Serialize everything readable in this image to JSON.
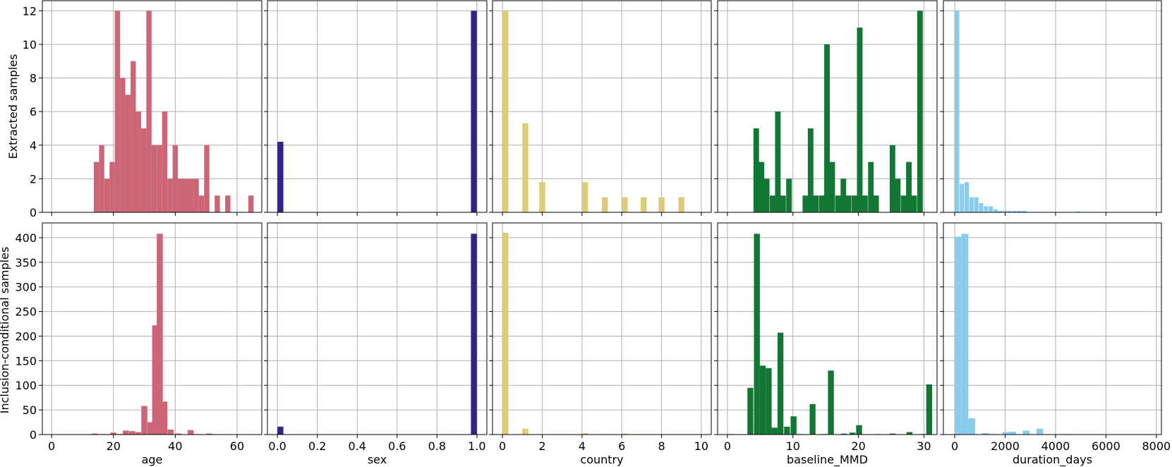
{
  "row_labels": [
    "Extracted samples",
    "Inclusion-conditional samples"
  ],
  "colors": {
    "age": "#cc6677",
    "sex": "#332288",
    "country": "#ddcc77",
    "baseline_MMD": "#117733",
    "duration_days": "#88ccee",
    "grid": "#b0b0b0"
  },
  "chart_data": [
    {
      "type": "bar",
      "row": 0,
      "col": 0,
      "variable": "age",
      "xlabel": "",
      "ylabel": "Extracted samples",
      "xlim": [
        -3,
        68
      ],
      "ylim": [
        0,
        12.6
      ],
      "xticks": [
        0,
        20,
        40,
        60
      ],
      "yticks": [
        0,
        2,
        4,
        6,
        8,
        10,
        12
      ],
      "show_xticklabels": false,
      "show_yticklabels": true,
      "bar_width": 1.7,
      "bars": [
        [
          14.5,
          3
        ],
        [
          16.2,
          4
        ],
        [
          17.9,
          2
        ],
        [
          19.6,
          3
        ],
        [
          21.3,
          12
        ],
        [
          23,
          8
        ],
        [
          24.7,
          7
        ],
        [
          26.4,
          9
        ],
        [
          28.1,
          6
        ],
        [
          29.8,
          5
        ],
        [
          31.5,
          12
        ],
        [
          33.2,
          4
        ],
        [
          34.9,
          4
        ],
        [
          36.6,
          6
        ],
        [
          38.3,
          2
        ],
        [
          40,
          4
        ],
        [
          41.7,
          2
        ],
        [
          43.4,
          2
        ],
        [
          45.1,
          2
        ],
        [
          46.8,
          2
        ],
        [
          48.5,
          1
        ],
        [
          50.2,
          4
        ],
        [
          53.6,
          1
        ],
        [
          57,
          1
        ],
        [
          64.5,
          1
        ]
      ]
    },
    {
      "type": "bar",
      "row": 0,
      "col": 1,
      "variable": "sex",
      "xlabel": "",
      "ylabel": "",
      "xlim": [
        -0.05,
        1.05
      ],
      "ylim": [
        0,
        12.6
      ],
      "xticks": [
        0,
        0.2,
        0.4,
        0.6,
        0.8,
        1.0
      ],
      "yticks": [
        0,
        2,
        4,
        6,
        8,
        10,
        12
      ],
      "show_xticklabels": false,
      "show_yticklabels": false,
      "bar_width": 0.03,
      "bars": [
        [
          0.015,
          4.2
        ],
        [
          0.985,
          12
        ]
      ]
    },
    {
      "type": "bar",
      "row": 0,
      "col": 2,
      "variable": "country",
      "xlabel": "",
      "ylabel": "",
      "xlim": [
        -0.5,
        10.5
      ],
      "ylim": [
        0,
        12.6
      ],
      "xticks": [
        0,
        2,
        4,
        6,
        8,
        10
      ],
      "yticks": [
        0,
        2,
        4,
        6,
        8,
        10,
        12
      ],
      "show_xticklabels": false,
      "show_yticklabels": false,
      "bar_width": 0.3,
      "bars": [
        [
          0.15,
          12
        ],
        [
          1.15,
          5.3
        ],
        [
          2,
          1.8
        ],
        [
          4.15,
          1.8
        ],
        [
          5.15,
          0.9
        ],
        [
          6.15,
          0.9
        ],
        [
          7.1,
          0.9
        ],
        [
          8,
          0.9
        ],
        [
          9,
          0.9
        ]
      ]
    },
    {
      "type": "bar",
      "row": 0,
      "col": 3,
      "variable": "baseline_MMD",
      "xlabel": "",
      "ylabel": "",
      "xlim": [
        -1.5,
        32
      ],
      "ylim": [
        0,
        12.6
      ],
      "xticks": [
        0,
        10,
        20,
        30
      ],
      "yticks": [
        0,
        2,
        4,
        6,
        8,
        10,
        12
      ],
      "show_xticklabels": false,
      "show_yticklabels": false,
      "bar_width": 0.85,
      "bars": [
        [
          4.4,
          5
        ],
        [
          5.2,
          3
        ],
        [
          6,
          2
        ],
        [
          6.9,
          1
        ],
        [
          7.7,
          6
        ],
        [
          8.5,
          1
        ],
        [
          9.4,
          2
        ],
        [
          11.9,
          1
        ],
        [
          12.7,
          5
        ],
        [
          13.5,
          1
        ],
        [
          14.4,
          1
        ],
        [
          15.2,
          10
        ],
        [
          16,
          3
        ],
        [
          16.9,
          1
        ],
        [
          17.7,
          2
        ],
        [
          18.5,
          1
        ],
        [
          19.4,
          1
        ],
        [
          20.2,
          11
        ],
        [
          21,
          1
        ],
        [
          21.9,
          3
        ],
        [
          22.7,
          1
        ],
        [
          25.2,
          4
        ],
        [
          26,
          2
        ],
        [
          26.9,
          1
        ],
        [
          27.7,
          3
        ],
        [
          28.5,
          1
        ],
        [
          29.4,
          12
        ]
      ]
    },
    {
      "type": "bar",
      "row": 0,
      "col": 4,
      "variable": "duration_days",
      "xlabel": "",
      "ylabel": "",
      "xlim": [
        -450,
        8200
      ],
      "ylim": [
        0,
        12.6
      ],
      "xticks": [
        0,
        2000,
        4000,
        6000,
        8000
      ],
      "yticks": [
        0,
        2,
        4,
        6,
        8,
        10,
        12
      ],
      "show_xticklabels": false,
      "show_yticklabels": false,
      "bar_width": 170,
      "bars": [
        [
          95,
          12
        ],
        [
          285,
          1.7
        ],
        [
          475,
          1.8
        ],
        [
          665,
          0.9
        ],
        [
          855,
          0.9
        ],
        [
          1045,
          0.55
        ],
        [
          1240,
          0.36
        ],
        [
          1430,
          0.36
        ],
        [
          1620,
          0.18
        ],
        [
          1810,
          0.09
        ],
        [
          2000,
          0.09
        ],
        [
          2190,
          0.09
        ],
        [
          2380,
          0.09
        ],
        [
          2570,
          0.09
        ],
        [
          2760,
          0.09
        ],
        [
          4900,
          0.05
        ]
      ]
    },
    {
      "type": "bar",
      "row": 1,
      "col": 0,
      "variable": "age",
      "xlabel": "age",
      "ylabel": "Inclusion-conditional samples",
      "xlim": [
        -3,
        68
      ],
      "ylim": [
        0,
        430
      ],
      "xticks": [
        0,
        20,
        40,
        60
      ],
      "yticks": [
        0,
        50,
        100,
        150,
        200,
        250,
        300,
        350,
        400
      ],
      "show_xticklabels": true,
      "show_yticklabels": true,
      "bar_width": 1.95,
      "bars": [
        [
          14,
          2
        ],
        [
          16,
          1
        ],
        [
          18,
          1
        ],
        [
          20,
          4
        ],
        [
          22,
          1
        ],
        [
          24,
          8
        ],
        [
          26,
          7
        ],
        [
          28,
          5
        ],
        [
          30,
          58
        ],
        [
          32,
          25
        ],
        [
          33.5,
          222
        ],
        [
          35,
          408
        ],
        [
          36.5,
          67
        ],
        [
          38.5,
          10
        ],
        [
          41,
          2
        ],
        [
          45,
          9
        ],
        [
          47,
          1
        ],
        [
          51,
          2
        ]
      ]
    },
    {
      "type": "bar",
      "row": 1,
      "col": 1,
      "variable": "sex",
      "xlabel": "sex",
      "ylabel": "",
      "xlim": [
        -0.05,
        1.05
      ],
      "ylim": [
        0,
        430
      ],
      "xticks": [
        0,
        0.2,
        0.4,
        0.6,
        0.8,
        1.0
      ],
      "yticks": [
        0,
        50,
        100,
        150,
        200,
        250,
        300,
        350,
        400
      ],
      "show_xticklabels": true,
      "show_yticklabels": false,
      "bar_width": 0.03,
      "bars": [
        [
          0.015,
          16
        ],
        [
          0.985,
          408
        ]
      ]
    },
    {
      "type": "bar",
      "row": 1,
      "col": 2,
      "variable": "country",
      "xlabel": "country",
      "ylabel": "",
      "xlim": [
        -0.5,
        10.5
      ],
      "ylim": [
        0,
        430
      ],
      "xticks": [
        0,
        2,
        4,
        6,
        8,
        10
      ],
      "yticks": [
        0,
        50,
        100,
        150,
        200,
        250,
        300,
        350,
        400
      ],
      "show_xticklabels": true,
      "show_yticklabels": false,
      "bar_width": 0.3,
      "bars": [
        [
          0.15,
          410
        ],
        [
          1.15,
          12
        ],
        [
          4.15,
          3
        ],
        [
          5.15,
          1
        ],
        [
          6.15,
          2
        ]
      ]
    },
    {
      "type": "bar",
      "row": 1,
      "col": 3,
      "variable": "baseline_MMD",
      "xlabel": "baseline_MMD",
      "ylabel": "",
      "xlim": [
        -1.5,
        32
      ],
      "ylim": [
        0,
        430
      ],
      "xticks": [
        0,
        10,
        20,
        30
      ],
      "yticks": [
        0,
        50,
        100,
        150,
        200,
        250,
        300,
        350,
        400
      ],
      "show_xticklabels": true,
      "show_yticklabels": false,
      "bar_width": 0.9,
      "bars": [
        [
          0.5,
          1
        ],
        [
          3.5,
          95
        ],
        [
          4.5,
          408
        ],
        [
          5.4,
          140
        ],
        [
          6.3,
          135
        ],
        [
          7.2,
          14
        ],
        [
          8.1,
          207
        ],
        [
          9.1,
          16
        ],
        [
          10.1,
          37
        ],
        [
          11.1,
          1
        ],
        [
          13,
          62
        ],
        [
          14.9,
          1
        ],
        [
          15.8,
          130
        ],
        [
          17.8,
          2
        ],
        [
          19.1,
          4
        ],
        [
          20.1,
          19
        ],
        [
          23,
          1
        ],
        [
          25.2,
          2
        ],
        [
          27.8,
          5
        ],
        [
          29.9,
          1
        ],
        [
          30.8,
          102
        ]
      ]
    },
    {
      "type": "bar",
      "row": 1,
      "col": 4,
      "variable": "duration_days",
      "xlabel": "duration_days",
      "ylabel": "",
      "xlim": [
        -450,
        8200
      ],
      "ylim": [
        0,
        430
      ],
      "xticks": [
        0,
        2000,
        4000,
        6000,
        8000
      ],
      "yticks": [
        0,
        50,
        100,
        150,
        200,
        250,
        300,
        350,
        400
      ],
      "show_xticklabels": true,
      "show_yticklabels": false,
      "bar_width": 270,
      "bars": [
        [
          135,
          402
        ],
        [
          405,
          408
        ],
        [
          675,
          33
        ],
        [
          1215,
          3
        ],
        [
          1485,
          1
        ],
        [
          2025,
          5
        ],
        [
          2295,
          6
        ],
        [
          2835,
          8
        ],
        [
          3375,
          12
        ],
        [
          4455,
          1
        ]
      ]
    }
  ]
}
